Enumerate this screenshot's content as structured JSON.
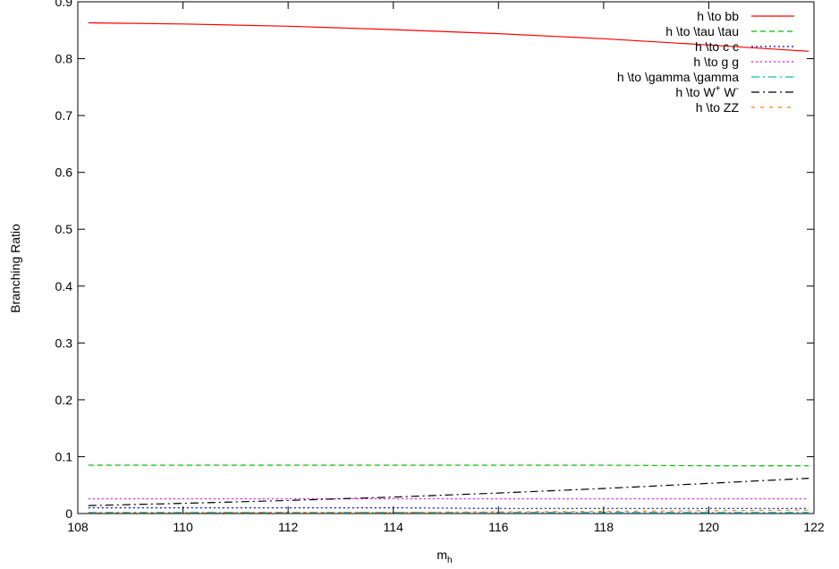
{
  "chart_data": {
    "type": "line",
    "title": "",
    "xlabel": "m",
    "xlabel_sub": "h",
    "ylabel": "Branching Ratio",
    "xlim": [
      108,
      122
    ],
    "ylim": [
      0,
      0.9
    ],
    "x_ticks": [
      108,
      110,
      112,
      114,
      116,
      118,
      120,
      122
    ],
    "y_ticks": [
      0,
      0.1,
      0.2,
      0.3,
      0.4,
      0.5,
      0.6,
      0.7,
      0.8,
      0.9
    ],
    "x_tick_labels": [
      "108",
      "110",
      "112",
      "114",
      "116",
      "118",
      "120",
      "122"
    ],
    "y_tick_labels": [
      "0",
      "0.1",
      "0.2",
      "0.3",
      "0.4",
      "0.5",
      "0.6",
      "0.7",
      "0.8",
      "0.9"
    ],
    "grid": false,
    "legend_position": "top-right",
    "x": [
      108.2,
      110,
      112,
      114,
      116,
      118,
      120,
      121.9
    ],
    "series": [
      {
        "name": "h \\to bb",
        "color": "#ff0000",
        "dash": "solid",
        "values": [
          0.863,
          0.861,
          0.857,
          0.851,
          0.844,
          0.835,
          0.824,
          0.813
        ]
      },
      {
        "name": "h \\to \\tau \\tau",
        "color": "#00c000",
        "dash": "dashed",
        "values": [
          0.085,
          0.085,
          0.085,
          0.085,
          0.085,
          0.085,
          0.084,
          0.084
        ]
      },
      {
        "name": "h \\to c c",
        "color": "#0000ff",
        "dash": "dotted",
        "values": [
          0.01,
          0.01,
          0.01,
          0.01,
          0.009,
          0.009,
          0.009,
          0.009
        ]
      },
      {
        "name": "h \\to g g",
        "color": "#ff00ff",
        "dash": "dotted",
        "values": [
          0.026,
          0.026,
          0.026,
          0.026,
          0.026,
          0.026,
          0.026,
          0.026
        ]
      },
      {
        "name": "h \\to \\gamma \\gamma",
        "color": "#00c0c0",
        "dash": "dashdot",
        "values": [
          0.002,
          0.002,
          0.002,
          0.002,
          0.002,
          0.002,
          0.002,
          0.002
        ]
      },
      {
        "name": "h \\to W",
        "name_sup1": "+",
        "name_mid": " W",
        "name_sup2": "-",
        "color": "#000000",
        "dash": "dashdot",
        "values": [
          0.014,
          0.018,
          0.023,
          0.029,
          0.036,
          0.044,
          0.053,
          0.062
        ]
      },
      {
        "name": "h \\to ZZ",
        "color": "#ff8000",
        "dash": "dashdot2",
        "values": [
          0.001,
          0.001,
          0.002,
          0.002,
          0.003,
          0.004,
          0.005,
          0.006
        ]
      }
    ]
  }
}
